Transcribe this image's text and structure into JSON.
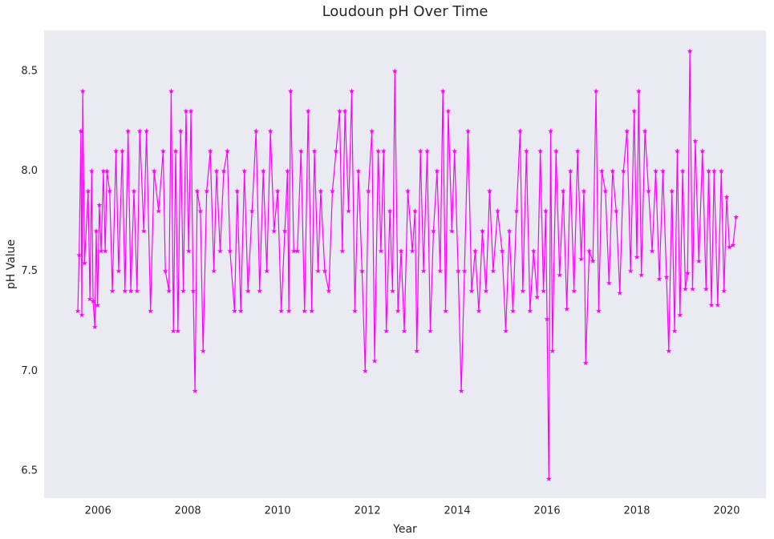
{
  "chart_data": {
    "type": "line",
    "title": "Loudoun pH Over Time",
    "x_label": "Year",
    "y_label": "pH Value",
    "xlim": [
      2004.8,
      2020.875
    ],
    "ylim": [
      6.364,
      8.704
    ],
    "xticks": [
      2006,
      2008,
      2010,
      2012,
      2014,
      2016,
      2018,
      2020
    ],
    "yticks": [
      6.5,
      {
        "value": 7,
        "label": "7.0"
      },
      7.5,
      {
        "value": 8,
        "label": "8.0"
      },
      8.5
    ],
    "grid": false,
    "marker": "star",
    "x": [
      2005.55,
      2005.58,
      2005.62,
      2005.64,
      2005.66,
      2005.7,
      2005.78,
      2005.82,
      2005.86,
      2005.89,
      2005.93,
      2005.96,
      2005.99,
      2006.03,
      2006.07,
      2006.12,
      2006.16,
      2006.2,
      2006.26,
      2006.32,
      2006.4,
      2006.46,
      2006.54,
      2006.6,
      2006.67,
      2006.73,
      2006.8,
      2006.87,
      2006.93,
      2007.02,
      2007.08,
      2007.17,
      2007.25,
      2007.35,
      2007.45,
      2007.5,
      2007.58,
      2007.63,
      2007.68,
      2007.73,
      2007.78,
      2007.84,
      2007.9,
      2007.96,
      2008.02,
      2008.07,
      2008.12,
      2008.16,
      2008.21,
      2008.28,
      2008.34,
      2008.42,
      2008.5,
      2008.58,
      2008.64,
      2008.72,
      2008.8,
      2008.88,
      2008.94,
      2009.04,
      2009.1,
      2009.18,
      2009.26,
      2009.34,
      2009.43,
      2009.52,
      2009.6,
      2009.68,
      2009.76,
      2009.84,
      2009.92,
      2010.0,
      2010.08,
      2010.16,
      2010.22,
      2010.25,
      2010.29,
      2010.36,
      2010.44,
      2010.52,
      2010.6,
      2010.68,
      2010.76,
      2010.82,
      2010.9,
      2010.96,
      2011.05,
      2011.14,
      2011.22,
      2011.3,
      2011.38,
      2011.44,
      2011.5,
      2011.58,
      2011.65,
      2011.72,
      2011.8,
      2011.88,
      2011.95,
      2012.02,
      2012.1,
      2012.16,
      2012.24,
      2012.3,
      2012.36,
      2012.42,
      2012.5,
      2012.56,
      2012.61,
      2012.68,
      2012.75,
      2012.82,
      2012.9,
      2013.0,
      2013.06,
      2013.1,
      2013.18,
      2013.25,
      2013.33,
      2013.4,
      2013.47,
      2013.55,
      2013.62,
      2013.68,
      2013.74,
      2013.8,
      2013.88,
      2013.94,
      2014.02,
      2014.09,
      2014.16,
      2014.24,
      2014.32,
      2014.4,
      2014.48,
      2014.56,
      2014.64,
      2014.72,
      2014.8,
      2014.9,
      2015.0,
      2015.08,
      2015.16,
      2015.24,
      2015.32,
      2015.4,
      2015.46,
      2015.54,
      2015.62,
      2015.7,
      2015.78,
      2015.85,
      2015.92,
      2015.97,
      2016.0,
      2016.04,
      2016.08,
      2016.12,
      2016.2,
      2016.28,
      2016.36,
      2016.44,
      2016.52,
      2016.6,
      2016.68,
      2016.76,
      2016.82,
      2016.86,
      2016.94,
      2017.02,
      2017.09,
      2017.15,
      2017.22,
      2017.3,
      2017.38,
      2017.46,
      2017.54,
      2017.62,
      2017.7,
      2017.78,
      2017.86,
      2017.94,
      2018.0,
      2018.04,
      2018.1,
      2018.18,
      2018.26,
      2018.34,
      2018.42,
      2018.5,
      2018.58,
      2018.66,
      2018.71,
      2018.78,
      2018.84,
      2018.9,
      2018.96,
      2019.02,
      2019.08,
      2019.13,
      2019.18,
      2019.24,
      2019.3,
      2019.38,
      2019.46,
      2019.54,
      2019.6,
      2019.66,
      2019.72,
      2019.8,
      2019.88,
      2019.94,
      2020.0,
      2020.06,
      2020.14,
      2020.21
    ],
    "series": [
      {
        "name": "pH",
        "color": "#ff00ff",
        "values": [
          7.3,
          7.58,
          8.2,
          7.28,
          8.4,
          7.54,
          7.9,
          7.36,
          8.0,
          7.35,
          7.22,
          7.7,
          7.33,
          7.83,
          7.6,
          8.0,
          7.6,
          8.0,
          7.9,
          7.4,
          8.1,
          7.5,
          8.1,
          7.4,
          8.2,
          7.4,
          7.9,
          7.4,
          8.2,
          7.7,
          8.2,
          7.3,
          8.0,
          7.8,
          8.1,
          7.5,
          7.4,
          8.4,
          7.2,
          8.1,
          7.2,
          8.2,
          7.4,
          8.3,
          7.6,
          8.3,
          7.4,
          6.9,
          7.9,
          7.8,
          7.1,
          7.9,
          8.1,
          7.5,
          8.0,
          7.6,
          8.0,
          8.1,
          7.6,
          7.3,
          7.9,
          7.3,
          8.0,
          7.4,
          7.8,
          8.2,
          7.4,
          8.0,
          7.5,
          8.2,
          7.7,
          7.9,
          7.3,
          7.7,
          8.0,
          7.3,
          8.4,
          7.6,
          7.6,
          8.1,
          7.3,
          8.3,
          7.3,
          8.1,
          7.5,
          7.9,
          7.5,
          7.4,
          7.9,
          8.1,
          8.3,
          7.6,
          8.3,
          7.8,
          8.4,
          7.3,
          8.0,
          7.5,
          7.0,
          7.9,
          8.2,
          7.05,
          8.1,
          7.6,
          8.1,
          7.2,
          7.8,
          7.4,
          8.5,
          7.3,
          7.6,
          7.2,
          7.9,
          7.6,
          7.8,
          7.1,
          8.1,
          7.5,
          8.1,
          7.2,
          7.7,
          8.0,
          7.5,
          8.4,
          7.3,
          8.3,
          7.7,
          8.1,
          7.5,
          6.9,
          7.5,
          8.2,
          7.4,
          7.6,
          7.3,
          7.7,
          7.4,
          7.9,
          7.5,
          7.8,
          7.6,
          7.2,
          7.7,
          7.3,
          7.8,
          8.2,
          7.4,
          8.1,
          7.3,
          7.6,
          7.37,
          8.1,
          7.4,
          7.8,
          7.26,
          6.46,
          8.2,
          7.1,
          8.1,
          7.48,
          7.9,
          7.31,
          8.0,
          7.4,
          8.1,
          7.56,
          7.9,
          7.04,
          7.6,
          7.55,
          8.4,
          7.3,
          8.0,
          7.9,
          7.44,
          8.0,
          7.8,
          7.39,
          8.0,
          8.2,
          7.5,
          8.3,
          7.57,
          8.4,
          7.48,
          8.2,
          7.9,
          7.6,
          8.0,
          7.46,
          8.0,
          7.47,
          7.1,
          7.9,
          7.2,
          8.1,
          7.28,
          8.0,
          7.41,
          7.49,
          8.6,
          7.41,
          8.15,
          7.55,
          8.1,
          7.41,
          8.0,
          7.33,
          8.0,
          7.33,
          8.0,
          7.4,
          7.87,
          7.62,
          7.63,
          7.77
        ]
      }
    ]
  }
}
